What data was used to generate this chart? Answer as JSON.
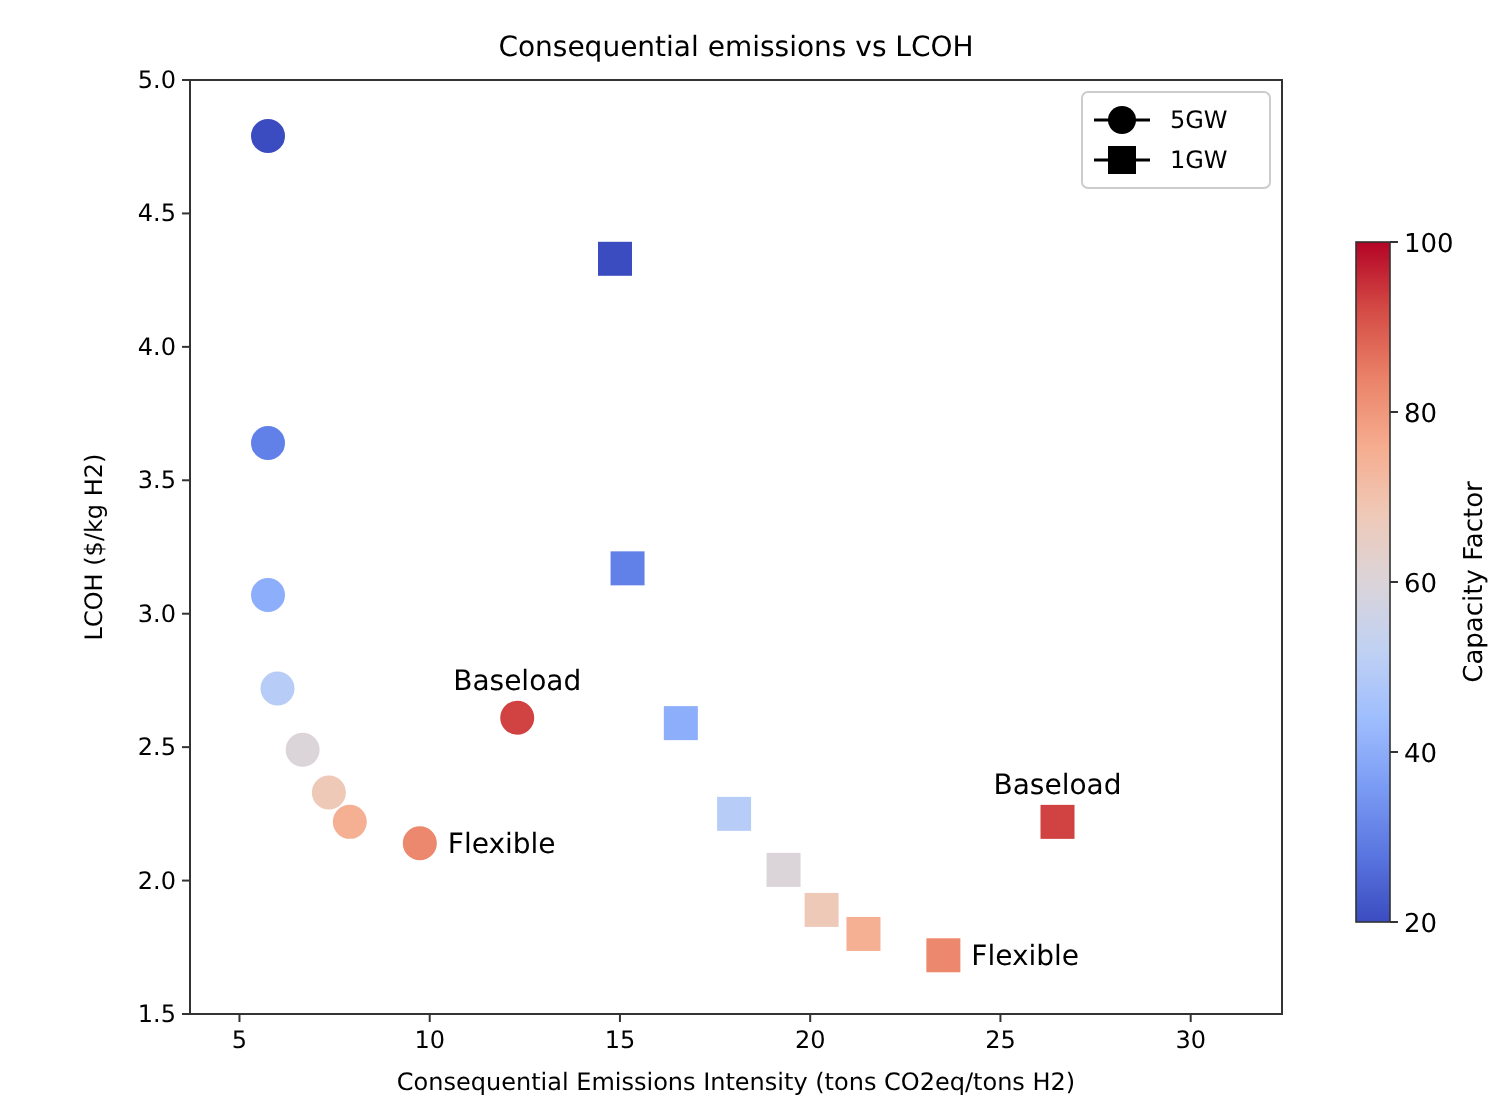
{
  "chart_data": {
    "type": "scatter",
    "title": "Consequential emissions vs LCOH",
    "xlabel": "Consequential Emissions Intensity (tons CO2eq/tons H2)",
    "ylabel": "LCOH ($/kg H2)",
    "clabel": "Capacity Factor",
    "xlim": [
      3.7,
      32.4
    ],
    "xticks": [
      5,
      10,
      15,
      20,
      25,
      30
    ],
    "ylim": [
      1.5,
      5.0
    ],
    "yticks": [
      {
        "value": 1.5,
        "label": "1.5"
      },
      {
        "value": 2.0,
        "label": "2.0"
      },
      {
        "value": 2.5,
        "label": "2.5"
      },
      {
        "value": 3.0,
        "label": "3.0"
      },
      {
        "value": 3.5,
        "label": "3.5"
      },
      {
        "value": 4.0,
        "label": "4.0"
      },
      {
        "value": 4.5,
        "label": "4.5"
      },
      {
        "value": 5.0,
        "label": "5.0"
      }
    ],
    "clim": [
      20,
      100
    ],
    "cticks": [
      20,
      40,
      60,
      80,
      100
    ],
    "legend": "top right",
    "grid": false,
    "series": [
      {
        "name": "5GW",
        "marker": "circle",
        "x": [
          5.75,
          5.75,
          5.75,
          6.0,
          6.66,
          7.35,
          7.9,
          9.74,
          12.3
        ],
        "values": [
          4.79,
          3.64,
          3.07,
          2.72,
          2.49,
          2.33,
          2.22,
          2.14,
          2.61
        ],
        "cvalues": [
          20,
          30,
          40,
          50,
          60,
          68,
          75,
          83,
          93
        ],
        "colors": [
          "#3b4cc0",
          "#6180e8",
          "#8daefb",
          "#b7ccf6",
          "#dbd4d9",
          "#efc9b7",
          "#f5b094",
          "#ec886d",
          "#d14342"
        ]
      },
      {
        "name": "1GW",
        "marker": "square",
        "x": [
          14.87,
          15.2,
          16.6,
          18.0,
          19.3,
          20.3,
          21.4,
          23.5,
          26.5
        ],
        "values": [
          4.33,
          3.17,
          2.59,
          2.25,
          2.04,
          1.89,
          1.8,
          1.72,
          2.22
        ],
        "cvalues": [
          20,
          30,
          40,
          50,
          60,
          68,
          75,
          83,
          93
        ],
        "colors": [
          "#3b4cc0",
          "#6180e8",
          "#8daefb",
          "#b7ccf6",
          "#dbd4d9",
          "#efc9b7",
          "#f5b094",
          "#ec886d",
          "#d14342"
        ]
      }
    ],
    "annotations": [
      {
        "text": "Baseload",
        "x": 12.3,
        "y": 2.61
      },
      {
        "text": "Flexible",
        "x": 9.74,
        "y": 2.14
      },
      {
        "text": "Baseload",
        "x": 26.5,
        "y": 2.22
      },
      {
        "text": "Flexible",
        "x": 23.5,
        "y": 1.72
      }
    ]
  }
}
